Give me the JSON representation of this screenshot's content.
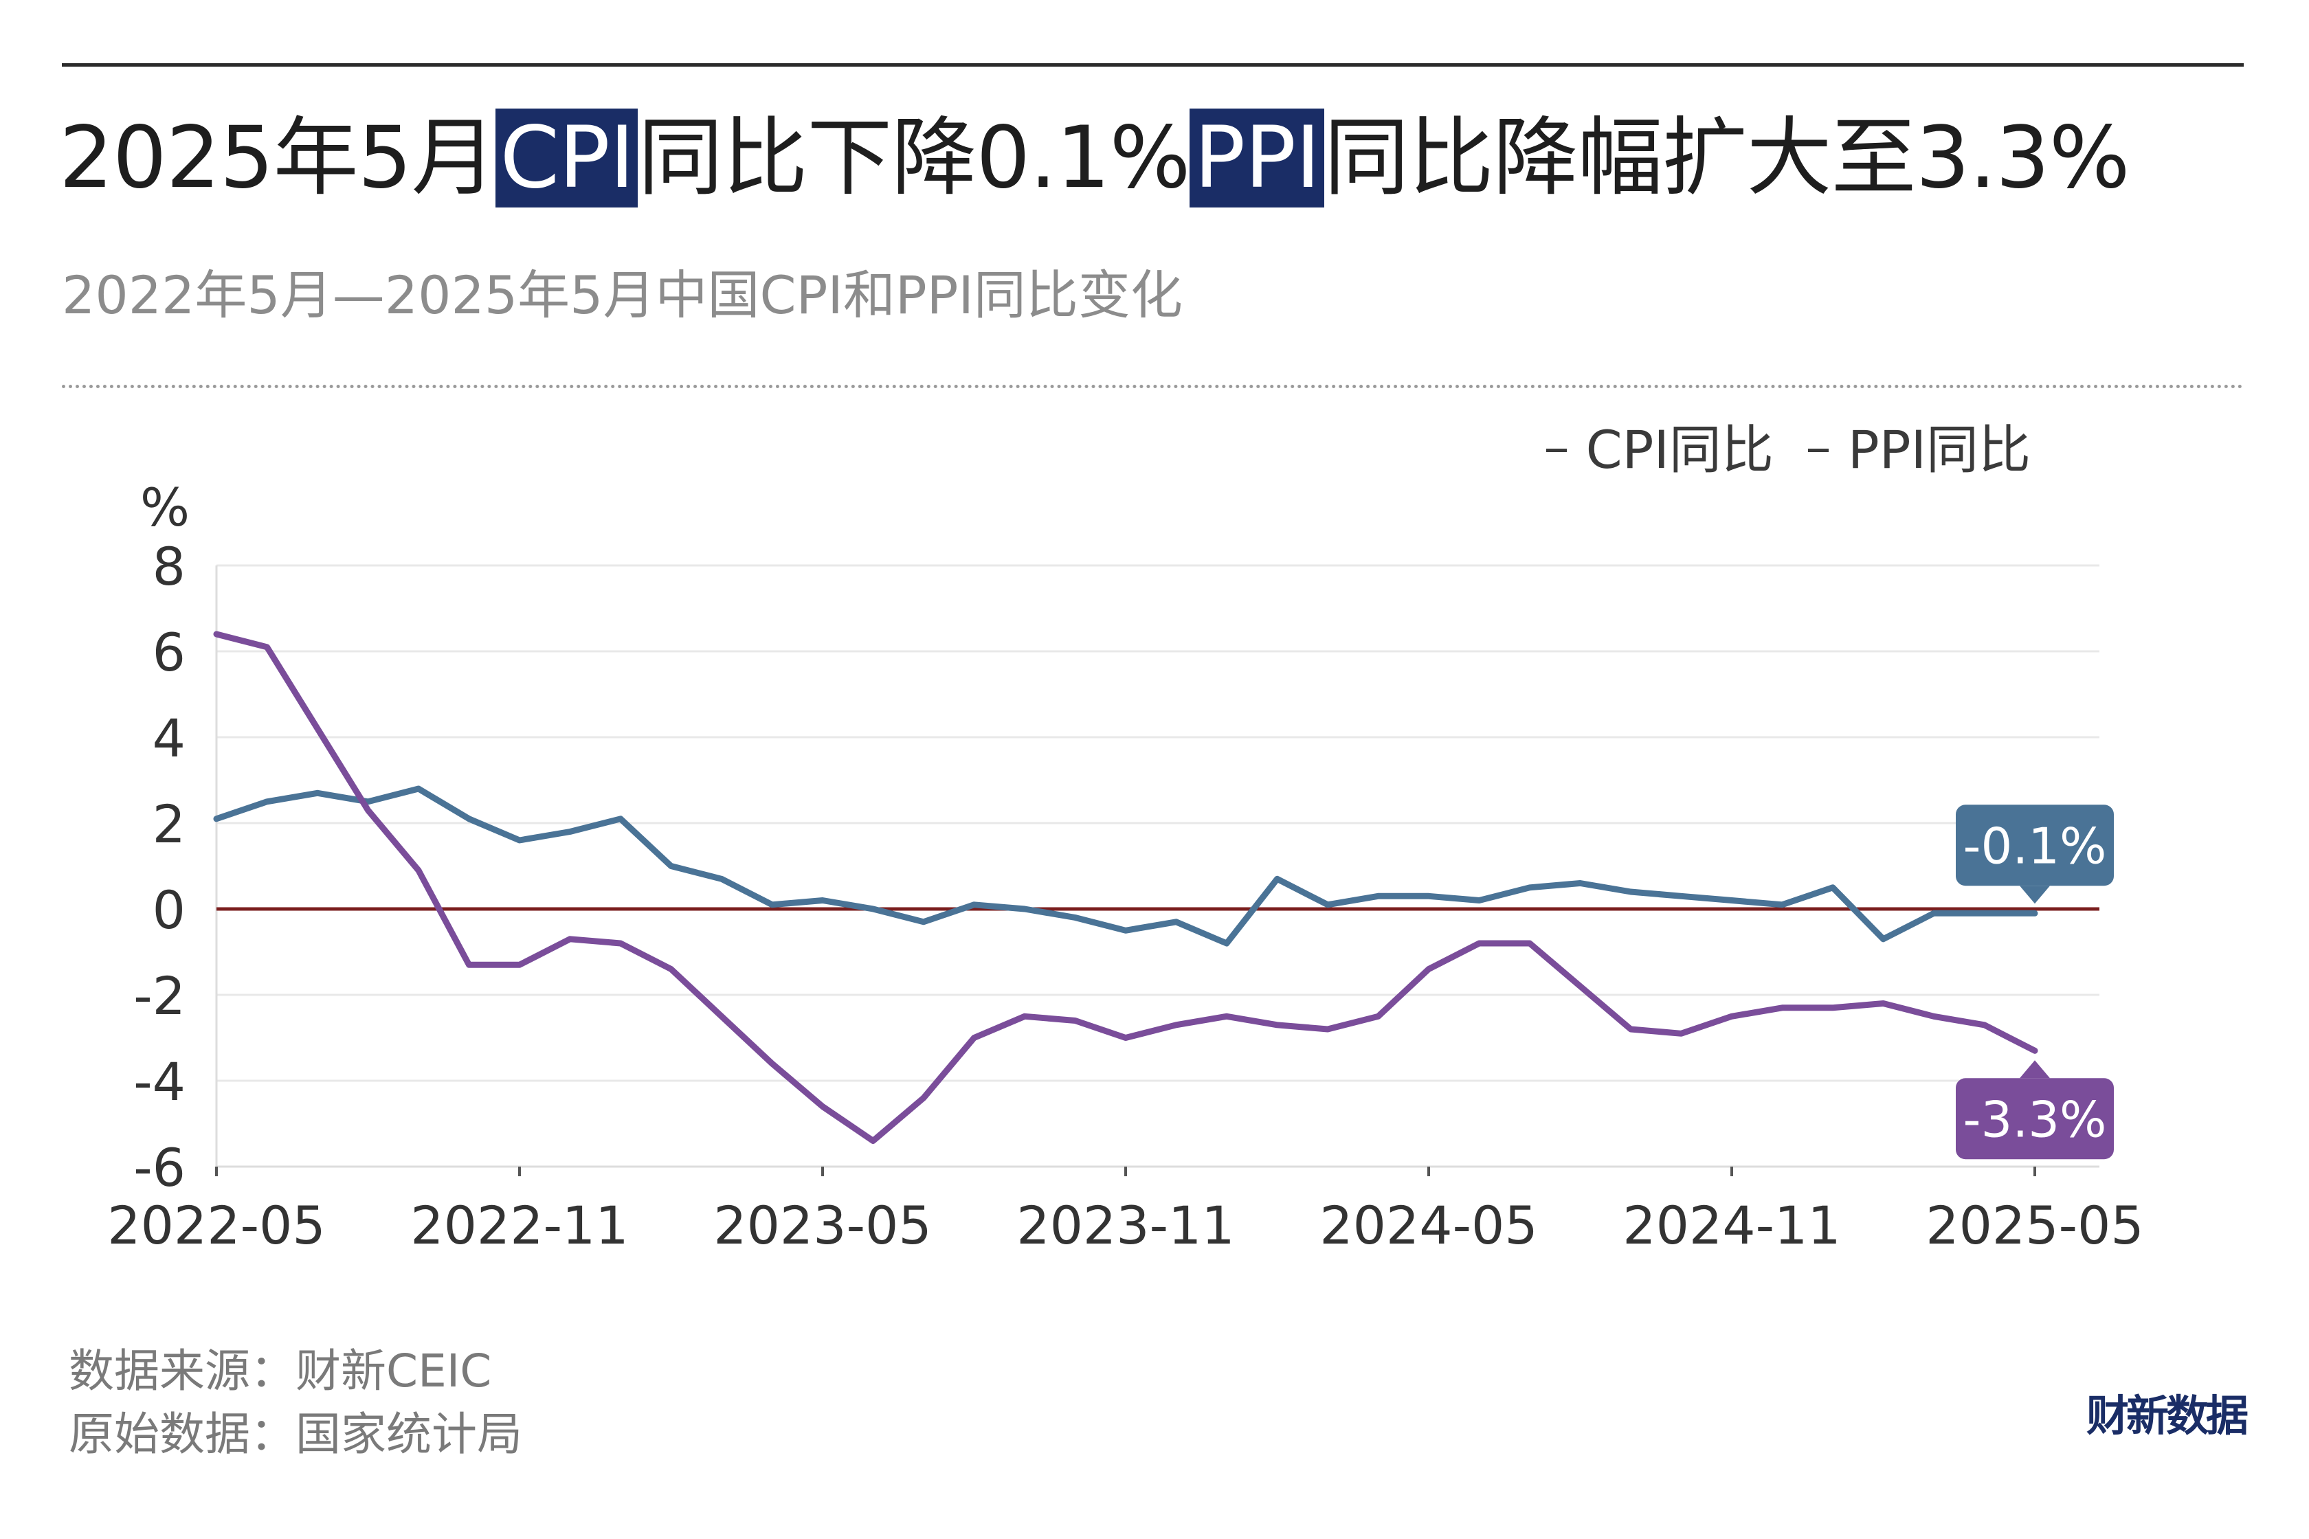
{
  "header": {
    "title_parts": {
      "p1": "2025年5月",
      "p2": "CPI",
      "p3": "同比下降0.1%",
      "p4": "PPI",
      "p5": "同比降幅扩大至3.3%"
    },
    "subtitle": "2022年5月—2025年5月中国CPI和PPI同比变化"
  },
  "footer": {
    "source_line1": "数据来源：财新CEIC",
    "source_line2": "原始数据：国家统计局",
    "logo_text": "财新数据"
  },
  "colors": {
    "cpi": "#4a7396",
    "ppi": "#7a4d9a",
    "zero_line": "#7a1e1e",
    "title_highlight": "#1a2d66"
  },
  "chart_data": {
    "type": "line",
    "ylabel": "%",
    "ylim": [
      -6,
      8
    ],
    "yticks": [
      8,
      6,
      4,
      2,
      0,
      -2,
      -4,
      -6
    ],
    "x": [
      "2022-05",
      "2022-06",
      "2022-07",
      "2022-08",
      "2022-09",
      "2022-10",
      "2022-11",
      "2022-12",
      "2023-01",
      "2023-02",
      "2023-03",
      "2023-04",
      "2023-05",
      "2023-06",
      "2023-07",
      "2023-08",
      "2023-09",
      "2023-10",
      "2023-11",
      "2023-12",
      "2024-01",
      "2024-02",
      "2024-03",
      "2024-04",
      "2024-05",
      "2024-06",
      "2024-07",
      "2024-08",
      "2024-09",
      "2024-10",
      "2024-11",
      "2024-12",
      "2025-01",
      "2025-02",
      "2025-03",
      "2025-04",
      "2025-05"
    ],
    "xticks": [
      "2022-05",
      "2022-11",
      "2023-05",
      "2023-11",
      "2024-05",
      "2024-11",
      "2025-05"
    ],
    "legend": "top-right",
    "grid": "horizontal",
    "series": [
      {
        "name": "CPI同比",
        "values": [
          2.1,
          2.5,
          2.7,
          2.5,
          2.8,
          2.1,
          1.6,
          1.8,
          2.1,
          1.0,
          0.7,
          0.1,
          0.2,
          0.0,
          -0.3,
          0.1,
          0.0,
          -0.2,
          -0.5,
          -0.3,
          -0.8,
          0.7,
          0.1,
          0.3,
          0.3,
          0.2,
          0.5,
          0.6,
          0.4,
          0.3,
          0.2,
          0.1,
          0.5,
          -0.7,
          -0.1,
          -0.1,
          -0.1
        ],
        "end_label": "-0.1%"
      },
      {
        "name": "PPI同比",
        "values": [
          6.4,
          6.1,
          4.2,
          2.3,
          0.9,
          -1.3,
          -1.3,
          -0.7,
          -0.8,
          -1.4,
          -2.5,
          -3.6,
          -4.6,
          -5.4,
          -4.4,
          -3.0,
          -2.5,
          -2.6,
          -3.0,
          -2.7,
          -2.5,
          -2.7,
          -2.8,
          -2.5,
          -1.4,
          -0.8,
          -0.8,
          -1.8,
          -2.8,
          -2.9,
          -2.5,
          -2.3,
          -2.3,
          -2.2,
          -2.5,
          -2.7,
          -3.3
        ],
        "end_label": "-3.3%"
      }
    ]
  }
}
